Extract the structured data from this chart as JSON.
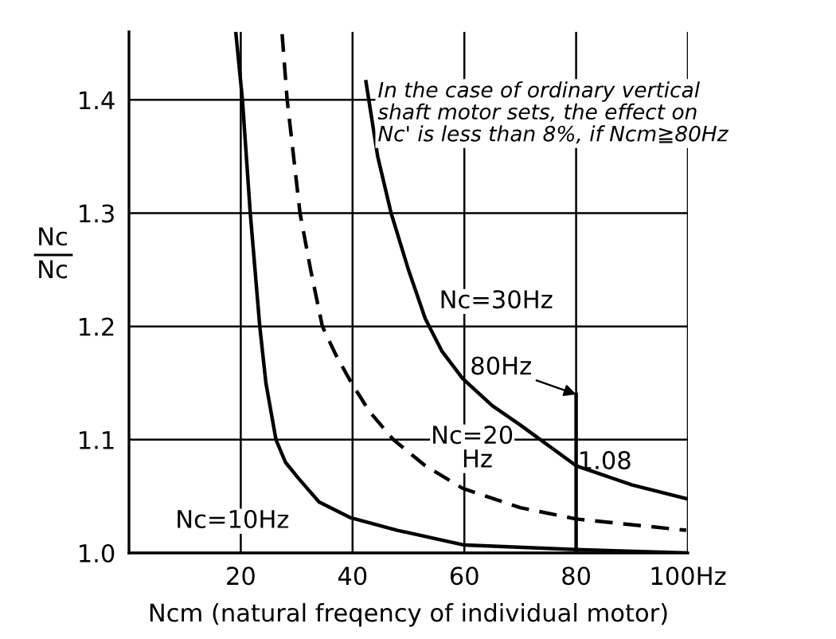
{
  "chart_data": {
    "type": "line",
    "xlabel": "Ncm (natural freqency of individual motor)",
    "ylabel": "Nc\nNc",
    "xlim": [
      0,
      100
    ],
    "ylim": [
      1.0,
      1.46
    ],
    "xticks": [
      20,
      40,
      60,
      {
        "value": 100,
        "label": "100Hz"
      },
      80
    ],
    "yticks": [
      {
        "value": 1.0,
        "label": "1.0"
      },
      1.1,
      1.2,
      1.3,
      1.4
    ],
    "grid": true,
    "marker": "none",
    "series": [
      {
        "name": "Nc=10Hz",
        "color": "#000000",
        "line_style": "solid",
        "x": [
          19.1,
          20.3,
          21.7,
          23.4,
          24.5,
          26.3,
          28,
          30.3,
          34,
          39.7,
          48,
          60,
          80,
          100
        ],
        "values": [
          1.46,
          1.4,
          1.3,
          1.2,
          1.15,
          1.1,
          1.08,
          1.066,
          1.045,
          1.031,
          1.02,
          1.007,
          1.003,
          1.0
        ]
      },
      {
        "name": "Nc=20\n    Hz",
        "color": "#000000",
        "line_style": "dashed",
        "x": [
          27.4,
          28.3,
          30.6,
          32.5,
          34.6,
          37,
          39.7,
          43,
          47.3,
          53,
          59.7,
          70,
          80,
          99.7
        ],
        "values": [
          1.458,
          1.4,
          1.3,
          1.25,
          1.2,
          1.175,
          1.151,
          1.125,
          1.1,
          1.077,
          1.057,
          1.04,
          1.03,
          1.02
        ]
      },
      {
        "name": "Nc=30Hz",
        "color": "#000000",
        "line_style": "solid",
        "x": [
          42.4,
          44.5,
          46.9,
          50,
          53,
          56,
          59.7,
          65,
          70,
          80,
          90,
          99.7
        ],
        "values": [
          1.416,
          1.35,
          1.3,
          1.25,
          1.207,
          1.178,
          1.154,
          1.13,
          1.113,
          1.077,
          1.06,
          1.048
        ]
      },
      {
        "color": "#000000",
        "line_style": "solid",
        "x": [
          80,
          80
        ],
        "values": [
          1.0,
          1.14
        ]
      }
    ],
    "annotations": [
      "In the case of ordinary vertical\nshaft motor sets, the effect on\nNc' is less than 8%, if Ncm≧80Hz",
      {
        "text": "80Hz",
        "x": 80,
        "y": 1.14
      },
      {
        "text": "1.08",
        "x": 80.3,
        "y": 1.08
      }
    ]
  }
}
